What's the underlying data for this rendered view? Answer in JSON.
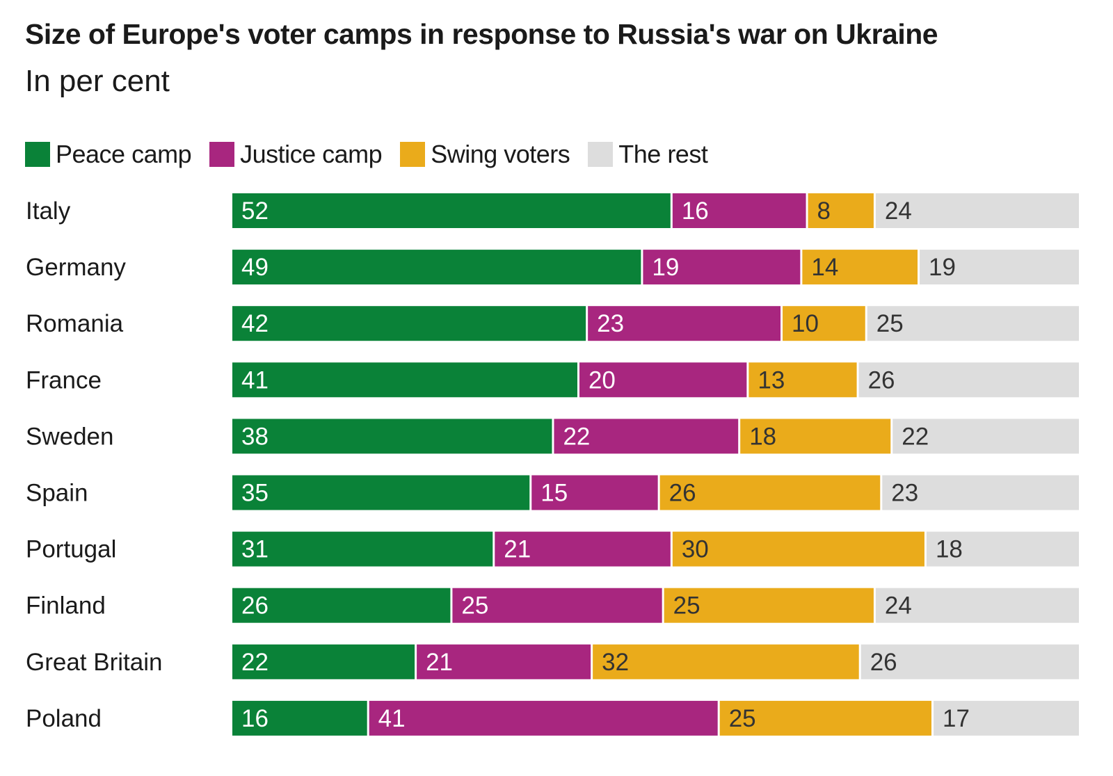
{
  "chart_data": {
    "type": "bar",
    "orientation": "horizontal",
    "stacked": true,
    "title": "Size of Europe's voter camps in response to Russia's war on Ukraine",
    "subtitle": "In per cent",
    "xlabel": "",
    "ylabel": "",
    "xlim": [
      0,
      100
    ],
    "grid": false,
    "legend_position": "top-left",
    "categories": [
      "Italy",
      "Germany",
      "Romania",
      "France",
      "Sweden",
      "Spain",
      "Portugal",
      "Finland",
      "Great Britain",
      "Poland"
    ],
    "series": [
      {
        "name": "Peace camp",
        "color": "#0a8238",
        "label_color": "#ffffff",
        "values": [
          52,
          49,
          42,
          41,
          38,
          35,
          31,
          26,
          22,
          16
        ]
      },
      {
        "name": "Justice camp",
        "color": "#a8267f",
        "label_color": "#ffffff",
        "values": [
          16,
          19,
          23,
          20,
          22,
          15,
          21,
          25,
          21,
          41
        ]
      },
      {
        "name": "Swing voters",
        "color": "#eaab1b",
        "label_color": "#333333",
        "values": [
          8,
          14,
          10,
          13,
          18,
          26,
          30,
          25,
          32,
          25
        ]
      },
      {
        "name": "The rest",
        "color": "#dddddd",
        "label_color": "#333333",
        "values": [
          24,
          19,
          25,
          26,
          22,
          23,
          18,
          24,
          26,
          17
        ]
      }
    ]
  }
}
